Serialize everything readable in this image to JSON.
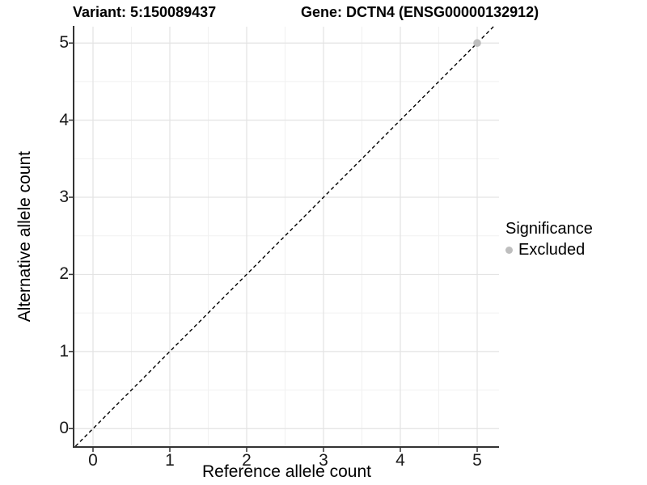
{
  "header": {
    "variant_title": "Variant: 5:150089437",
    "gene_title": "Gene: DCTN4 (ENSG00000132912)"
  },
  "chart_data": {
    "type": "scatter",
    "xlabel": "Reference allele count",
    "ylabel": "Alternative allele count",
    "x_ticks": [
      0,
      1,
      2,
      3,
      4,
      5
    ],
    "y_ticks": [
      0,
      1,
      2,
      3,
      4,
      5
    ],
    "xlim": [
      -0.242,
      5.284
    ],
    "ylim": [
      -0.228,
      5.212
    ],
    "grid": {
      "major": true,
      "minor": true
    },
    "reference_line": {
      "type": "identity",
      "style": "dashed",
      "slope": 1,
      "intercept": 0
    },
    "series": [
      {
        "name": "Excluded",
        "color": "#bebebe",
        "points": [
          {
            "x": 5,
            "y": 5
          }
        ]
      }
    ],
    "legend": {
      "title": "Significance",
      "position": "right",
      "items": [
        {
          "label": "Excluded",
          "color": "#bebebe"
        }
      ]
    }
  },
  "colors": {
    "background": "#ffffff",
    "grid_major": "#e3e3e3",
    "grid_minor": "#f1f1f1",
    "axis_line": "#333333",
    "dashed_line": "#000000",
    "tick_mark": "#333333"
  }
}
